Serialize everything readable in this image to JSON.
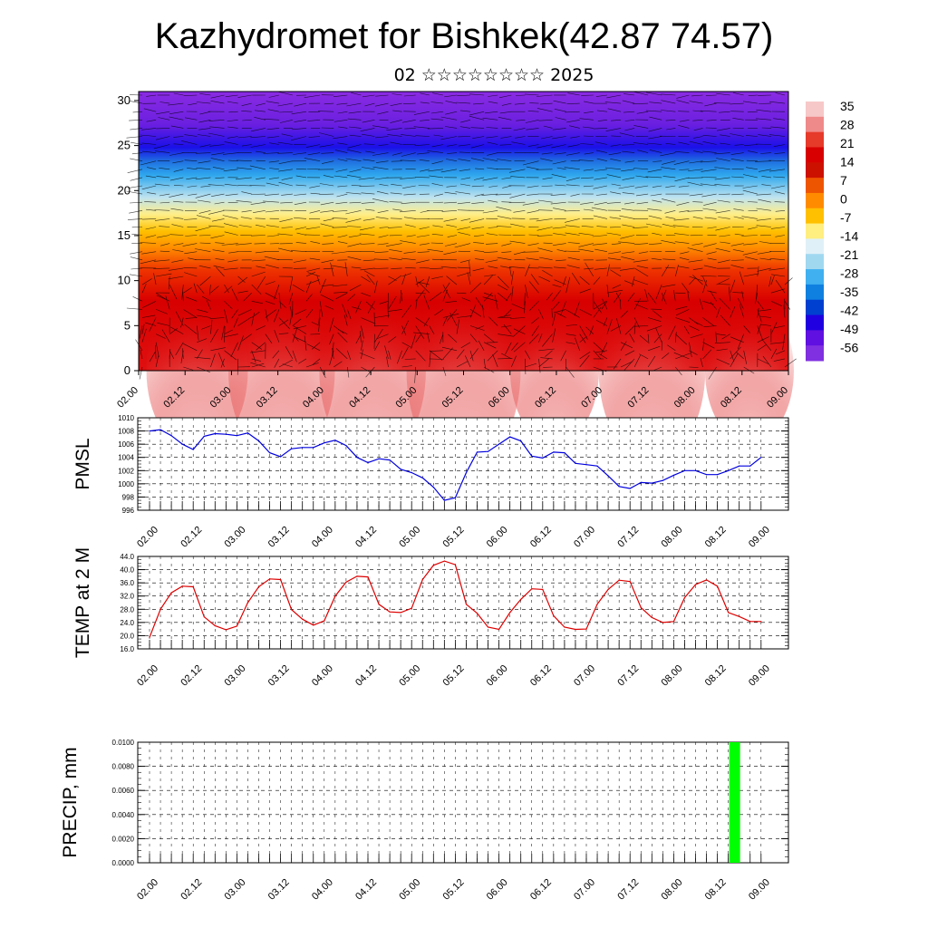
{
  "title": "Kazhydromet for Bishkek(42.87 74.57)",
  "subtitle": "02 ☆☆☆☆☆☆☆☆ 2025",
  "colors": {
    "pmsl_line": "#0000dd",
    "temp_line": "#dd0000",
    "precip_bar": "#00ff00",
    "colorbar": [
      "#f7c8c8",
      "#ef8a8a",
      "#e63a2a",
      "#d80000",
      "#cc1100",
      "#ee5500",
      "#ff8c00",
      "#ffc000",
      "#ffee80",
      "#e0f0f8",
      "#a0d8f0",
      "#40b0f0",
      "#1080e0",
      "#0040d0",
      "#2000e0",
      "#6010e0",
      "#8030e0"
    ]
  },
  "x_ticks": [
    "02.00",
    "02.12",
    "03.00",
    "03.12",
    "04.00",
    "04.12",
    "05.00",
    "05.12",
    "06.00",
    "06.12",
    "07.00",
    "07.12",
    "08.00",
    "08.12",
    "09.00"
  ],
  "chart_data": [
    {
      "type": "heatmap",
      "name": "cross-section",
      "yticks": [
        "0",
        "5",
        "10",
        "15",
        "20",
        "25",
        "30"
      ],
      "ylim": [
        0,
        31
      ],
      "colorbar_labels": [
        "35",
        "28",
        "21",
        "14",
        "7",
        "0",
        "-7",
        "-14",
        "-21",
        "-28",
        "-35",
        "-42",
        "-49",
        "-56"
      ]
    },
    {
      "type": "line",
      "ylabel": "PMSL",
      "ylim": [
        996,
        1010
      ],
      "yticks": [
        "996",
        "998",
        "1000",
        "1002",
        "1004",
        "1006",
        "1008",
        "1010"
      ],
      "values": [
        1008.0,
        1008.2,
        1007.3,
        1006.0,
        1005.2,
        1007.2,
        1007.6,
        1007.5,
        1007.3,
        1007.7,
        1006.5,
        1004.7,
        1004.1,
        1005.3,
        1005.5,
        1005.5,
        1006.2,
        1006.6,
        1005.8,
        1004.0,
        1003.2,
        1003.8,
        1003.6,
        1002.2,
        1001.7,
        1000.9,
        999.5,
        997.5,
        997.9,
        1001.7,
        1004.8,
        1004.9,
        1006.0,
        1007.1,
        1006.5,
        1004.2,
        1003.9,
        1004.8,
        1004.7,
        1003.1,
        1002.9,
        1002.7,
        1001.2,
        999.6,
        999.3,
        1000.2,
        1000.1,
        1000.5,
        1001.3,
        1002.0,
        1002.0,
        1001.4,
        1001.4,
        1002.0,
        1002.7,
        1002.7,
        1004.0
      ]
    },
    {
      "type": "line",
      "ylabel": "TEMP at 2 M",
      "ylim": [
        16,
        44
      ],
      "yticks": [
        "16.0",
        "20.0",
        "24.0",
        "28.0",
        "32.0",
        "36.0",
        "40.0",
        "44.0"
      ],
      "values": [
        19.5,
        28.0,
        33.0,
        35.0,
        34.8,
        25.7,
        23.0,
        21.8,
        22.9,
        30.0,
        34.8,
        37.2,
        37.0,
        27.9,
        25.0,
        23.2,
        24.5,
        32.0,
        36.2,
        38.0,
        37.8,
        29.5,
        27.2,
        27.0,
        28.3,
        37.0,
        41.3,
        42.6,
        41.5,
        29.5,
        26.8,
        22.6,
        21.9,
        27.0,
        31.0,
        34.2,
        34.0,
        26.0,
        22.6,
        21.9,
        22.0,
        29.5,
        34.0,
        36.8,
        36.4,
        28.5,
        25.5,
        24.0,
        24.3,
        31.5,
        35.5,
        36.9,
        35.0,
        27.0,
        25.8,
        24.3,
        24.3
      ]
    },
    {
      "type": "bar",
      "ylabel": "PRECIP, mm",
      "ylim": [
        0,
        0.01
      ],
      "yticks": [
        "0.0000",
        "0.0020",
        "0.0040",
        "0.0060",
        "0.0080",
        "0.0100"
      ],
      "bars": [
        {
          "x_index": 53,
          "value": 0.01
        }
      ]
    }
  ]
}
